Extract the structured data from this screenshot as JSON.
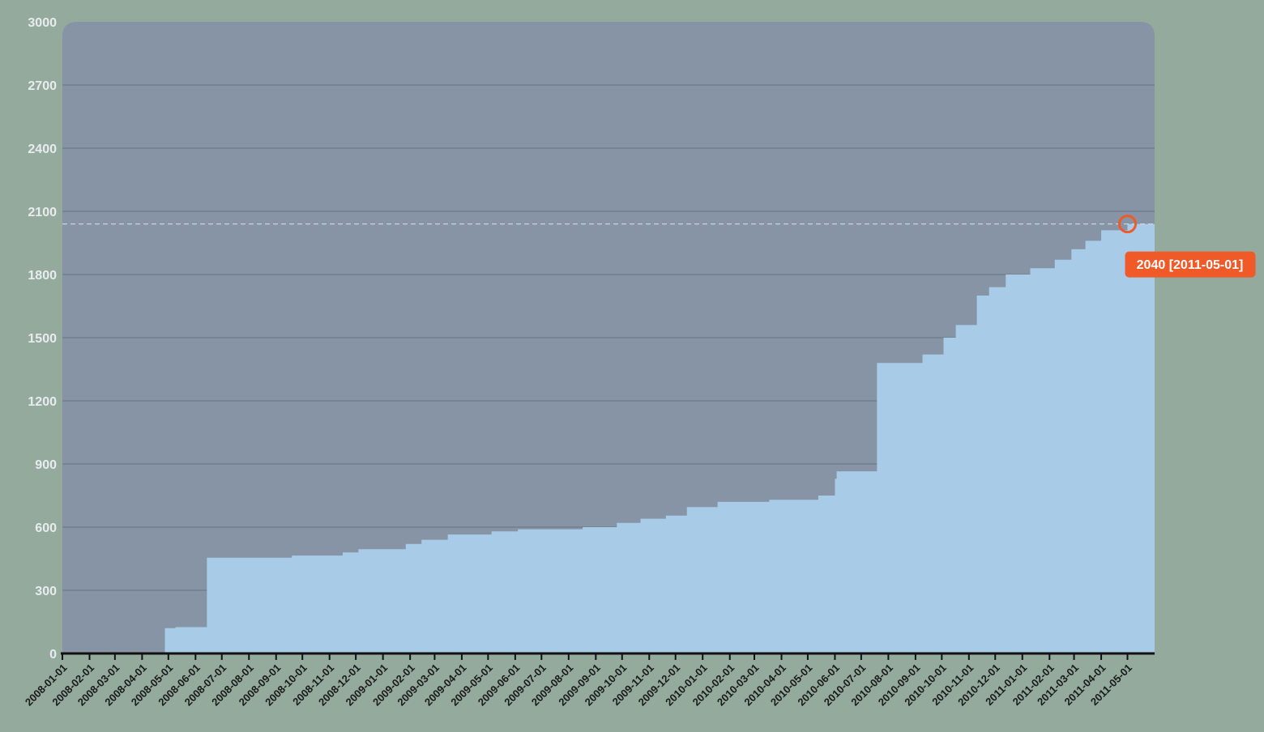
{
  "chart_data": {
    "type": "area",
    "x": [
      "2008-01-01",
      "2008-04-27",
      "2008-05-09",
      "2008-06-14",
      "2008-09-19",
      "2008-11-16",
      "2008-12-04",
      "2009-01-27",
      "2009-02-14",
      "2009-03-16",
      "2009-05-05",
      "2009-06-04",
      "2009-08-17",
      "2009-09-25",
      "2009-10-22",
      "2009-11-20",
      "2009-12-14",
      "2010-01-18",
      "2010-03-18",
      "2010-05-13",
      "2010-06-01",
      "2010-06-03",
      "2010-07-19",
      "2010-09-09",
      "2010-10-03",
      "2010-10-17",
      "2010-11-10",
      "2010-11-24",
      "2010-12-13",
      "2011-01-10",
      "2011-02-07",
      "2011-02-26",
      "2011-03-14",
      "2011-04-01",
      "2011-05-01"
    ],
    "values": [
      0,
      120,
      125,
      455,
      465,
      480,
      495,
      520,
      540,
      565,
      580,
      590,
      600,
      620,
      640,
      655,
      695,
      720,
      730,
      750,
      830,
      865,
      1380,
      1420,
      1500,
      1560,
      1700,
      1740,
      1800,
      1830,
      1870,
      1920,
      1960,
      2010,
      2040
    ],
    "color": "#a8cbe8",
    "xlim": [
      "2008-01-01",
      "2011-06-01"
    ],
    "xticks": [
      "2008-01-01",
      "2008-02-01",
      "2008-03-01",
      "2008-04-01",
      "2008-05-01",
      "2008-06-01",
      "2008-07-01",
      "2008-08-01",
      "2008-09-01",
      "2008-10-01",
      "2008-11-01",
      "2008-12-01",
      "2009-01-01",
      "2009-02-01",
      "2009-03-01",
      "2009-04-01",
      "2009-05-01",
      "2009-06-01",
      "2009-07-01",
      "2009-08-01",
      "2009-09-01",
      "2009-10-01",
      "2009-11-01",
      "2009-12-01",
      "2010-01-01",
      "2010-02-01",
      "2010-03-01",
      "2010-04-01",
      "2010-05-01",
      "2010-06-01",
      "2010-07-01",
      "2010-08-01",
      "2010-09-01",
      "2010-10-01",
      "2010-11-01",
      "2010-12-01",
      "2011-01-01",
      "2011-02-01",
      "2011-03-01",
      "2011-04-01",
      "2011-05-01"
    ],
    "ylim": [
      0,
      3000
    ],
    "yticks": [
      0,
      300,
      600,
      900,
      1200,
      1500,
      1800,
      2100,
      2400,
      2700,
      3000
    ],
    "grid": true,
    "highlight": {
      "x": "2011-05-01",
      "value": 2040,
      "label": "2040 [2011-05-01]"
    }
  }
}
